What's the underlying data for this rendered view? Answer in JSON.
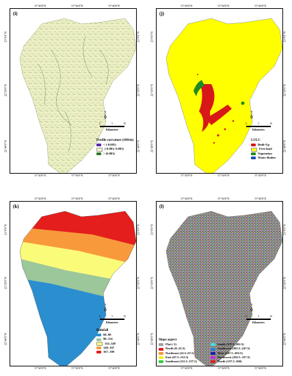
{
  "coords": {
    "top": [
      "57°20'0\"E",
      "57°30'0\"E",
      "57°40'0\"E"
    ],
    "side": [
      "23°0'0\"N",
      "22°50'0\"N",
      "22°40'0\"N"
    ]
  },
  "scale": {
    "ticks": [
      "0",
      "5",
      "10"
    ],
    "unit": "Kilometers"
  },
  "panels": [
    {
      "tag": "(i)",
      "legend_title": "Profile curvature (100/m)",
      "items": [
        {
          "label": "< (-0.001)",
          "color": "#5a2aa8"
        },
        {
          "label": "(-0.001; 0.001)",
          "color": "#f2f2c8"
        },
        {
          "label": "> (0.001)",
          "color": "#2f7a2a"
        }
      ]
    },
    {
      "tag": "(j)",
      "legend_title": "LULC",
      "items": [
        {
          "label": "Built-Up",
          "color": "#d81818"
        },
        {
          "label": "Free land",
          "color": "#ffff00"
        },
        {
          "label": "Vegetation",
          "color": "#1f8a1f"
        },
        {
          "label": "Water Bodies",
          "color": "#1a4fb5"
        }
      ]
    },
    {
      "tag": "(k)",
      "legend_title": "Rainfall",
      "items": [
        {
          "label": "68–90",
          "color": "#2b8fcf"
        },
        {
          "label": "90–114",
          "color": "#9cc79a"
        },
        {
          "label": "114–140",
          "color": "#fbfb7a"
        },
        {
          "label": "140–167",
          "color": "#f89a3b"
        },
        {
          "label": "167–189",
          "color": "#e41d1d"
        }
      ]
    },
    {
      "tag": "(l)",
      "legend_title": "Slope aspect",
      "items": [
        {
          "label": "Flat (-1)",
          "color": "#a0a0a0"
        },
        {
          "label": "North (0–22.5)",
          "color": "#e41d1d"
        },
        {
          "label": "Northeast (22.5–67.5)",
          "color": "#f89a3b"
        },
        {
          "label": "East (67.5–112.5)",
          "color": "#f2f21a"
        },
        {
          "label": "Southeast (112.5–157.5)",
          "color": "#2fcf3a"
        },
        {
          "label": "South (157.5–202.5)",
          "color": "#3fe0e0"
        },
        {
          "label": "Southwest (202.5–247.5)",
          "color": "#2a7bd8"
        },
        {
          "label": "West (247.5–292.5)",
          "color": "#1a1ab0"
        },
        {
          "label": "Northwest (292.5–337.5)",
          "color": "#d02ad0"
        },
        {
          "label": "North (337.5–360)",
          "color": "#e41d1d"
        }
      ]
    }
  ]
}
